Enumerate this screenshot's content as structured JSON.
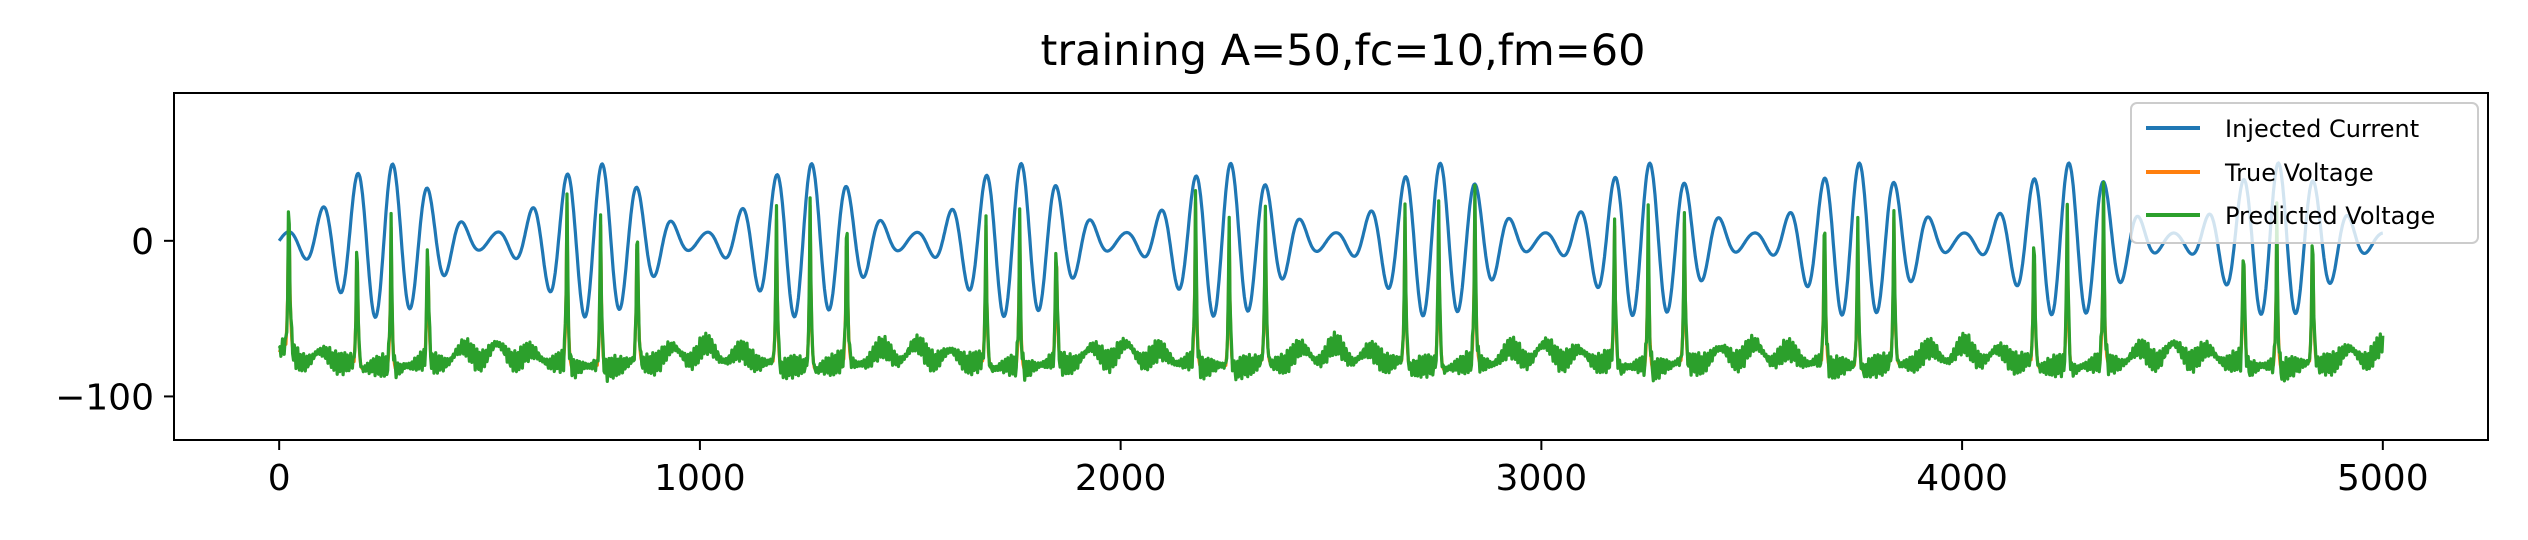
{
  "chart_data": {
    "type": "line",
    "title": "training A=50,fc=10,fm=60",
    "xlabel": "",
    "ylabel": "",
    "xlim": [
      -250,
      5250
    ],
    "ylim": [
      -128,
      95
    ],
    "xticks": [
      0,
      1000,
      2000,
      3000,
      4000,
      5000
    ],
    "xtick_labels": [
      "0",
      "1000",
      "2000",
      "3000",
      "4000",
      "5000"
    ],
    "yticks": [
      0,
      -100
    ],
    "ytick_labels": [
      "0",
      "−100"
    ],
    "grid": false,
    "legend_position": "top-right",
    "signal": {
      "sample_step": 2,
      "amplitude": 50,
      "carrier_frequency": 10,
      "modulation_frequency": 60,
      "modulation_period_samples": 500,
      "carrier_period_samples": 83,
      "resting_voltage": -80,
      "spike_peak_voltage": 60
    },
    "series": [
      {
        "name": "Injected Current",
        "color": "#1f77b4",
        "kind": "current"
      },
      {
        "name": "True Voltage",
        "color": "#ff7f0e",
        "kind": "true_voltage"
      },
      {
        "name": "Predicted Voltage",
        "color": "#2ca02c",
        "kind": "predicted_voltage"
      }
    ]
  }
}
